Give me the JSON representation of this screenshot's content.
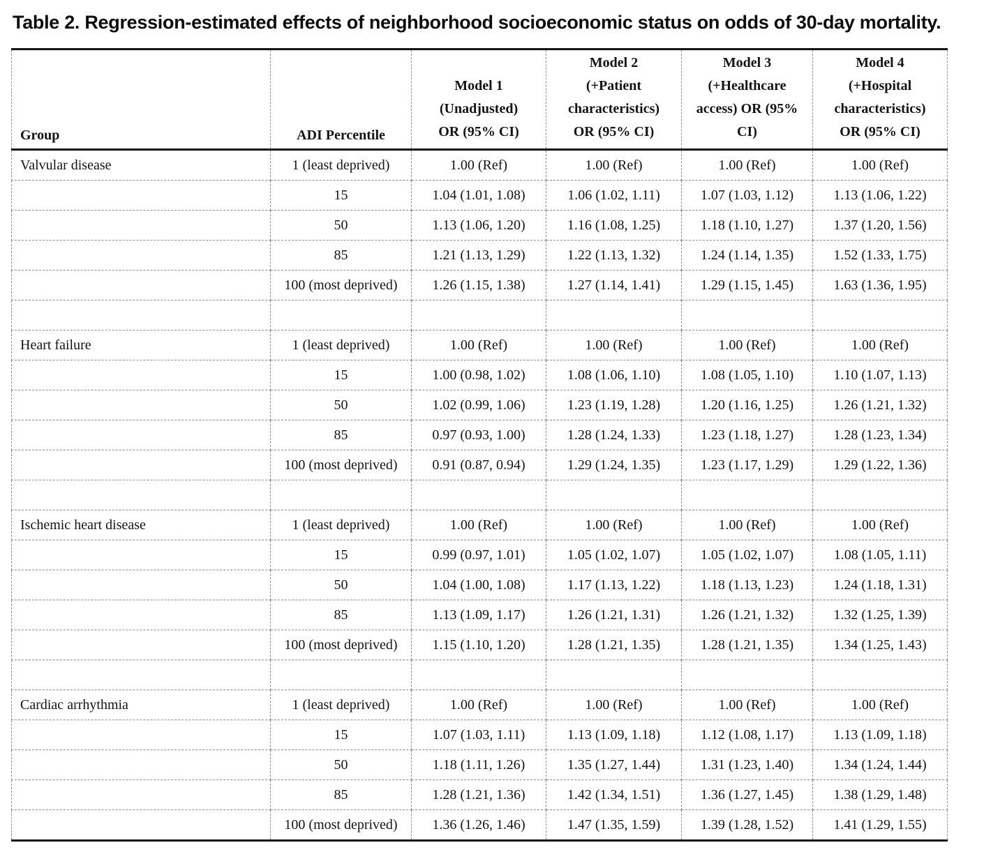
{
  "title": "Table 2. Regression-estimated effects of neighborhood socioeconomic status on odds of 30-day mortality.",
  "table": {
    "columns": [
      {
        "key": "group",
        "label": "Group"
      },
      {
        "key": "adi",
        "label": "ADI Percentile"
      },
      {
        "key": "m1",
        "label": "Model 1\n(Unadjusted)\nOR (95% CI)"
      },
      {
        "key": "m2",
        "label": "Model 2\n(+Patient\ncharacteristics)\nOR (95% CI)"
      },
      {
        "key": "m3",
        "label": "Model 3\n(+Healthcare\naccess) OR (95%\nCI)"
      },
      {
        "key": "m4",
        "label": "Model 4\n(+Hospital\ncharacteristics)\nOR (95% CI)"
      }
    ],
    "groups": [
      {
        "name": "Valvular disease",
        "rows": [
          {
            "adi": "1 (least deprived)",
            "m1": "1.00 (Ref)",
            "m2": "1.00 (Ref)",
            "m3": "1.00 (Ref)",
            "m4": "1.00 (Ref)"
          },
          {
            "adi": "15",
            "m1": "1.04 (1.01, 1.08)",
            "m2": "1.06 (1.02, 1.11)",
            "m3": "1.07 (1.03, 1.12)",
            "m4": "1.13 (1.06, 1.22)"
          },
          {
            "adi": "50",
            "m1": "1.13 (1.06, 1.20)",
            "m2": "1.16 (1.08, 1.25)",
            "m3": "1.18 (1.10, 1.27)",
            "m4": "1.37 (1.20, 1.56)"
          },
          {
            "adi": "85",
            "m1": "1.21 (1.13, 1.29)",
            "m2": "1.22 (1.13, 1.32)",
            "m3": "1.24 (1.14, 1.35)",
            "m4": "1.52 (1.33, 1.75)"
          },
          {
            "adi": "100 (most deprived)",
            "m1": "1.26 (1.15, 1.38)",
            "m2": "1.27 (1.14, 1.41)",
            "m3": "1.29 (1.15, 1.45)",
            "m4": "1.63 (1.36, 1.95)"
          }
        ]
      },
      {
        "name": "Heart failure",
        "rows": [
          {
            "adi": "1 (least deprived)",
            "m1": "1.00 (Ref)",
            "m2": "1.00 (Ref)",
            "m3": "1.00 (Ref)",
            "m4": "1.00 (Ref)"
          },
          {
            "adi": "15",
            "m1": "1.00 (0.98, 1.02)",
            "m2": "1.08 (1.06, 1.10)",
            "m3": "1.08 (1.05, 1.10)",
            "m4": "1.10 (1.07, 1.13)"
          },
          {
            "adi": "50",
            "m1": "1.02 (0.99, 1.06)",
            "m2": "1.23 (1.19, 1.28)",
            "m3": "1.20 (1.16, 1.25)",
            "m4": "1.26 (1.21, 1.32)"
          },
          {
            "adi": "85",
            "m1": "0.97 (0.93, 1.00)",
            "m2": "1.28 (1.24, 1.33)",
            "m3": "1.23 (1.18, 1.27)",
            "m4": "1.28 (1.23, 1.34)"
          },
          {
            "adi": "100 (most deprived)",
            "m1": "0.91 (0.87, 0.94)",
            "m2": "1.29 (1.24, 1.35)",
            "m3": "1.23 (1.17, 1.29)",
            "m4": "1.29 (1.22, 1.36)"
          }
        ]
      },
      {
        "name": "Ischemic heart disease",
        "rows": [
          {
            "adi": "1 (least deprived)",
            "m1": "1.00 (Ref)",
            "m2": "1.00 (Ref)",
            "m3": "1.00 (Ref)",
            "m4": "1.00 (Ref)"
          },
          {
            "adi": "15",
            "m1": "0.99 (0.97, 1.01)",
            "m2": "1.05 (1.02, 1.07)",
            "m3": "1.05 (1.02, 1.07)",
            "m4": "1.08 (1.05, 1.11)"
          },
          {
            "adi": "50",
            "m1": "1.04 (1.00, 1.08)",
            "m2": "1.17 (1.13, 1.22)",
            "m3": "1.18 (1.13, 1.23)",
            "m4": "1.24 (1.18, 1.31)"
          },
          {
            "adi": "85",
            "m1": "1.13 (1.09, 1.17)",
            "m2": "1.26 (1.21, 1.31)",
            "m3": "1.26 (1.21, 1.32)",
            "m4": "1.32 (1.25, 1.39)"
          },
          {
            "adi": "100 (most deprived)",
            "m1": "1.15 (1.10, 1.20)",
            "m2": "1.28 (1.21, 1.35)",
            "m3": "1.28 (1.21, 1.35)",
            "m4": "1.34 (1.25, 1.43)"
          }
        ]
      },
      {
        "name": "Cardiac arrhythmia",
        "rows": [
          {
            "adi": "1 (least deprived)",
            "m1": "1.00 (Ref)",
            "m2": "1.00 (Ref)",
            "m3": "1.00 (Ref)",
            "m4": "1.00 (Ref)"
          },
          {
            "adi": "15",
            "m1": "1.07 (1.03, 1.11)",
            "m2": "1.13 (1.09, 1.18)",
            "m3": "1.12 (1.08, 1.17)",
            "m4": "1.13 (1.09, 1.18)"
          },
          {
            "adi": "50",
            "m1": "1.18 (1.11, 1.26)",
            "m2": "1.35 (1.27, 1.44)",
            "m3": "1.31 (1.23, 1.40)",
            "m4": "1.34 (1.24, 1.44)"
          },
          {
            "adi": "85",
            "m1": "1.28 (1.21, 1.36)",
            "m2": "1.42 (1.34, 1.51)",
            "m3": "1.36 (1.27, 1.45)",
            "m4": "1.38 (1.29, 1.48)"
          },
          {
            "adi": "100 (most deprived)",
            "m1": "1.36 (1.26, 1.46)",
            "m2": "1.47 (1.35, 1.59)",
            "m3": "1.39 (1.28, 1.52)",
            "m4": "1.41 (1.29, 1.55)"
          }
        ]
      }
    ]
  }
}
